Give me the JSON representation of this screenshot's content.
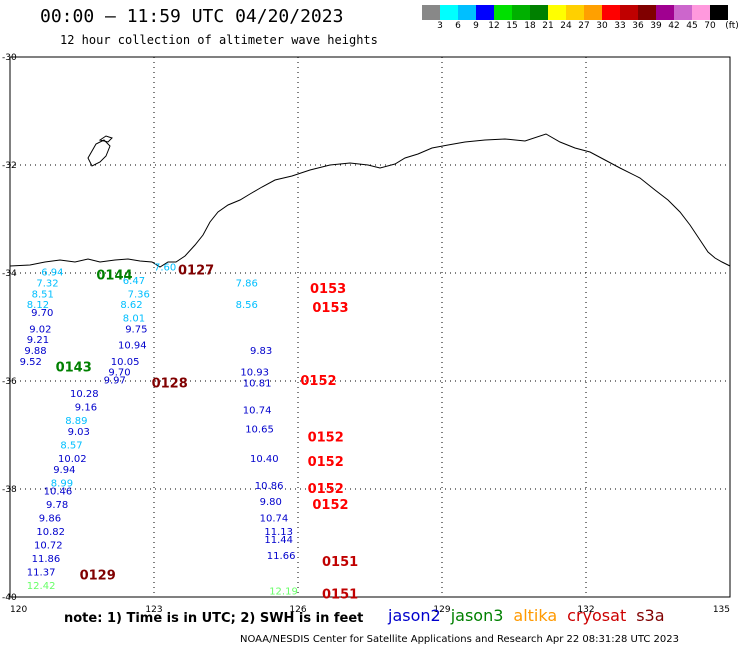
{
  "header": {
    "title": "00:00 — 11:59 UTC 04/20/2023",
    "subtitle": "12 hour collection of altimeter wave heights"
  },
  "colorbar": {
    "unit": "(ft)",
    "colors": [
      "#888888",
      "#00ffff",
      "#00bfff",
      "#0000ff",
      "#00e000",
      "#00b000",
      "#008000",
      "#ffff00",
      "#ffd000",
      "#ffa000",
      "#ff0000",
      "#c00000",
      "#800000",
      "#a00090",
      "#cc66cc",
      "#ff99dd",
      "#000000"
    ],
    "labels": [
      "3",
      "6",
      "9",
      "12",
      "15",
      "18",
      "21",
      "24",
      "27",
      "30",
      "33",
      "36",
      "39",
      "42",
      "45",
      "70"
    ]
  },
  "axes": {
    "lon_ticks": [
      "120",
      "123",
      "126",
      "129",
      "132",
      "135"
    ],
    "lat_ticks": [
      "-30",
      "-32",
      "-34",
      "-36",
      "-38",
      "-40"
    ]
  },
  "tracks": [
    {
      "satellite": "jason2",
      "points": [
        {
          "v": "9.70",
          "lon": 120.44,
          "lat": -34.8
        },
        {
          "v": "9.02",
          "lon": 120.4,
          "lat": -35.1
        },
        {
          "v": "9.21",
          "lon": 120.35,
          "lat": -35.3
        },
        {
          "v": "9.88",
          "lon": 120.3,
          "lat": -35.5
        },
        {
          "v": "9.52",
          "lon": 120.2,
          "lat": -35.7
        },
        {
          "v": "10.28",
          "lon": 121.25,
          "lat": -36.3
        },
        {
          "v": "9.16",
          "lon": 121.35,
          "lat": -36.55
        },
        {
          "v": "9.03",
          "lon": 121.2,
          "lat": -37.0
        },
        {
          "v": "10.02",
          "lon": 121.0,
          "lat": -37.5
        },
        {
          "v": "9.94",
          "lon": 120.9,
          "lat": -37.7
        },
        {
          "v": "10.46",
          "lon": 120.7,
          "lat": -38.1
        },
        {
          "v": "9.78",
          "lon": 120.75,
          "lat": -38.35
        },
        {
          "v": "9.86",
          "lon": 120.6,
          "lat": -38.6
        },
        {
          "v": "10.82",
          "lon": 120.55,
          "lat": -38.85
        },
        {
          "v": "10.72",
          "lon": 120.5,
          "lat": -39.1
        },
        {
          "v": "11.86",
          "lon": 120.45,
          "lat": -39.35
        },
        {
          "v": "11.37",
          "lon": 120.35,
          "lat": -39.6
        },
        {
          "v": "9.75",
          "lon": 122.4,
          "lat": -35.1
        },
        {
          "v": "10.94",
          "lon": 122.25,
          "lat": -35.4
        },
        {
          "v": "10.05",
          "lon": 122.1,
          "lat": -35.7
        },
        {
          "v": "9.70",
          "lon": 122.05,
          "lat": -35.9
        },
        {
          "v": "9.97",
          "lon": 121.95,
          "lat": -36.05
        },
        {
          "v": "9.83",
          "lon": 125.0,
          "lat": -35.5
        },
        {
          "v": "10.81",
          "lon": 124.85,
          "lat": -36.1
        },
        {
          "v": "10.93",
          "lon": 124.8,
          "lat": -35.9
        },
        {
          "v": "10.74",
          "lon": 124.85,
          "lat": -36.6
        },
        {
          "v": "10.65",
          "lon": 124.9,
          "lat": -36.95
        },
        {
          "v": "10.40",
          "lon": 125.0,
          "lat": -37.5
        },
        {
          "v": "10.86",
          "lon": 125.1,
          "lat": -38.0
        },
        {
          "v": "9.80",
          "lon": 125.2,
          "lat": -38.3
        },
        {
          "v": "10.74",
          "lon": 125.2,
          "lat": -38.6
        },
        {
          "v": "11.13",
          "lon": 125.3,
          "lat": -38.85
        },
        {
          "v": "11.44",
          "lon": 125.3,
          "lat": -39.0
        },
        {
          "v": "11.66",
          "lon": 125.35,
          "lat": -39.3
        }
      ]
    },
    {
      "satellite": "jason3-like-cyan",
      "points": [
        {
          "v": "6.94",
          "lon": 120.65,
          "lat": -34.05
        },
        {
          "v": "7.32",
          "lon": 120.55,
          "lat": -34.25
        },
        {
          "v": "8.51",
          "lon": 120.45,
          "lat": -34.45
        },
        {
          "v": "8.12",
          "lon": 120.35,
          "lat": -34.65
        },
        {
          "v": "6.47",
          "lon": 122.35,
          "lat": -34.2
        },
        {
          "v": "7.36",
          "lon": 122.45,
          "lat": -34.45
        },
        {
          "v": "8.62",
          "lon": 122.3,
          "lat": -34.65
        },
        {
          "v": "8.01",
          "lon": 122.35,
          "lat": -34.9
        },
        {
          "v": "8.89",
          "lon": 121.15,
          "lat": -36.8
        },
        {
          "v": "8.57",
          "lon": 121.05,
          "lat": -37.25
        },
        {
          "v": "8.99",
          "lon": 120.85,
          "lat": -37.95
        },
        {
          "v": "7.86",
          "lon": 124.7,
          "lat": -34.25
        },
        {
          "v": "8.56",
          "lon": 124.7,
          "lat": -34.65
        },
        {
          "v": "7.60",
          "lon": 123.0,
          "lat": -33.95
        }
      ]
    },
    {
      "satellite": "altika-light",
      "points": [
        {
          "v": "12.42",
          "lon": 120.35,
          "lat": -39.85
        },
        {
          "v": "12.19",
          "lon": 125.4,
          "lat": -39.95
        }
      ]
    }
  ],
  "passes": [
    {
      "id": "0144",
      "color": "#008000",
      "lon": 121.8,
      "lat": -34.05
    },
    {
      "id": "0143",
      "color": "#008000",
      "lon": 120.95,
      "lat": -35.75
    },
    {
      "id": "0127",
      "color": "#800000",
      "lon": 123.5,
      "lat": -33.95
    },
    {
      "id": "0128",
      "color": "#800000",
      "lon": 122.95,
      "lat": -36.05
    },
    {
      "id": "0129",
      "color": "#800000",
      "lon": 121.45,
      "lat": -39.6
    },
    {
      "id": "0153",
      "color": "#ff0000",
      "lon": 126.25,
      "lat": -34.3
    },
    {
      "id": "0153",
      "color": "#ff0000",
      "lon": 126.3,
      "lat": -34.65
    },
    {
      "id": "0152",
      "color": "#ff0000",
      "lon": 126.05,
      "lat": -36.0
    },
    {
      "id": "0152",
      "color": "#ff0000",
      "lon": 126.2,
      "lat": -37.05
    },
    {
      "id": "0152",
      "color": "#ff0000",
      "lon": 126.2,
      "lat": -37.5
    },
    {
      "id": "0152",
      "color": "#ff0000",
      "lon": 126.2,
      "lat": -38.0
    },
    {
      "id": "0152",
      "color": "#ff0000",
      "lon": 126.3,
      "lat": -38.3
    },
    {
      "id": "0151",
      "color": "#c00000",
      "lon": 126.5,
      "lat": -39.35
    },
    {
      "id": "0151",
      "color": "#c00000",
      "lon": 126.5,
      "lat": -39.95
    }
  ],
  "note": "note:  1) Time is in UTC;  2) SWH is in feet",
  "legend": [
    {
      "name": "jason2",
      "color": "#0000cc"
    },
    {
      "name": "jason3",
      "color": "#008000"
    },
    {
      "name": "altika",
      "color": "#ff9900"
    },
    {
      "name": "cryosat",
      "color": "#cc0000"
    },
    {
      "name": "s3a",
      "color": "#800000"
    }
  ],
  "footer": "NOAA/NESDIS Center for Satellite Applications and Research    Apr 22 08:31:28 UTC 2023"
}
